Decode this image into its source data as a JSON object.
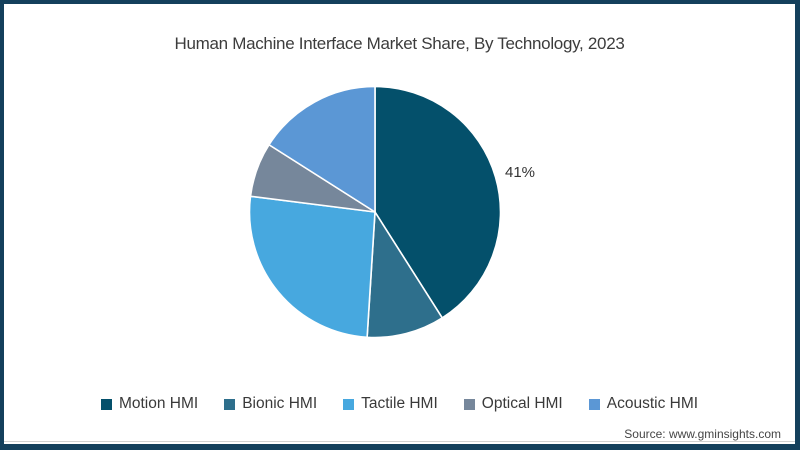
{
  "frame": {
    "border_color": "#14405C",
    "background": "#FFFFFF"
  },
  "title": "Human Machine Interface Market Share, By Technology, 2023",
  "source": "Source: www.gminsights.com",
  "chart_data": {
    "type": "pie",
    "title": "Human Machine Interface Market Share, By Technology, 2023",
    "categories": [
      "Motion HMI",
      "Bionic HMI",
      "Tactile HMI",
      "Optical HMI",
      "Acoustic HMI"
    ],
    "values": [
      41,
      10,
      26,
      7,
      16
    ],
    "unit": "%",
    "colors": [
      "#04506B",
      "#2E6F8C",
      "#47A8DF",
      "#76879B",
      "#5B97D5"
    ],
    "start_angle_deg": 0,
    "direction": "clockwise",
    "separator_color": "#FFFFFF",
    "data_labels": [
      {
        "category": "Motion HMI",
        "text": "41%"
      }
    ],
    "legend_position": "bottom"
  }
}
